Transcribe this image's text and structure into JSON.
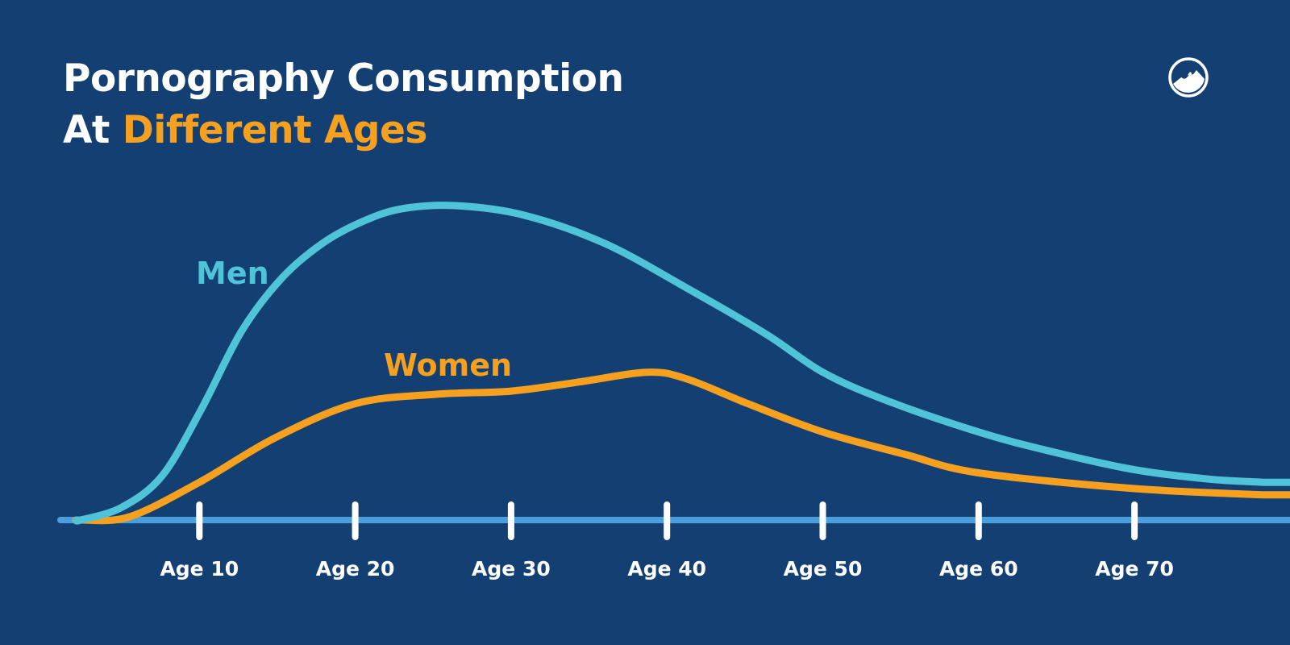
{
  "title": {
    "line1": "Pornography Consumption",
    "line2_prefix": "At ",
    "line2_accent": "Different Ages"
  },
  "logo": {
    "icon": "mountain-circle-logo"
  },
  "colors": {
    "background": "#143f73",
    "men": "#4fc3d8",
    "women": "#f5a01f",
    "axis": "#4a9fdc",
    "ticks": "#ffffff",
    "accent": "#f5a01f"
  },
  "chart_data": {
    "type": "line",
    "title": "Pornography Consumption At Different Ages",
    "xlabel": "",
    "ylabel": "",
    "xlim": [
      1,
      80
    ],
    "ylim": [
      0,
      100
    ],
    "y_axis_shown": false,
    "grid": false,
    "legend": "inline labels",
    "x_ticks": [
      10,
      20,
      30,
      40,
      50,
      60,
      70
    ],
    "x_tick_labels": [
      "Age 10",
      "Age 20",
      "Age 30",
      "Age 40",
      "Age 50",
      "Age 60",
      "Age 70"
    ],
    "series": [
      {
        "name": "Men",
        "color": "#4fc3d8",
        "x": [
          2.4,
          5,
          7.6,
          10.1,
          12.7,
          15.3,
          17.9,
          20.5,
          23,
          26.4,
          30.8,
          36,
          41.2,
          46.4,
          50,
          54.1,
          60,
          64.5,
          70,
          74.8,
          78.3
        ],
        "y": [
          0,
          4,
          14,
          35,
          60,
          77,
          88,
          95,
          99,
          100,
          97,
          88,
          74,
          59,
          47,
          38,
          28,
          22,
          16,
          13,
          12
        ]
      },
      {
        "name": "Women",
        "color": "#f5a01f",
        "x": [
          2.4,
          5.5,
          10,
          14.8,
          20,
          25.2,
          30,
          34.5,
          38.7,
          41.2,
          45.2,
          50,
          55.2,
          60,
          70,
          78.3
        ],
        "y": [
          0,
          1,
          12,
          26,
          37,
          40,
          41,
          44,
          47,
          45,
          37,
          28,
          21,
          15,
          10,
          8
        ]
      }
    ]
  }
}
